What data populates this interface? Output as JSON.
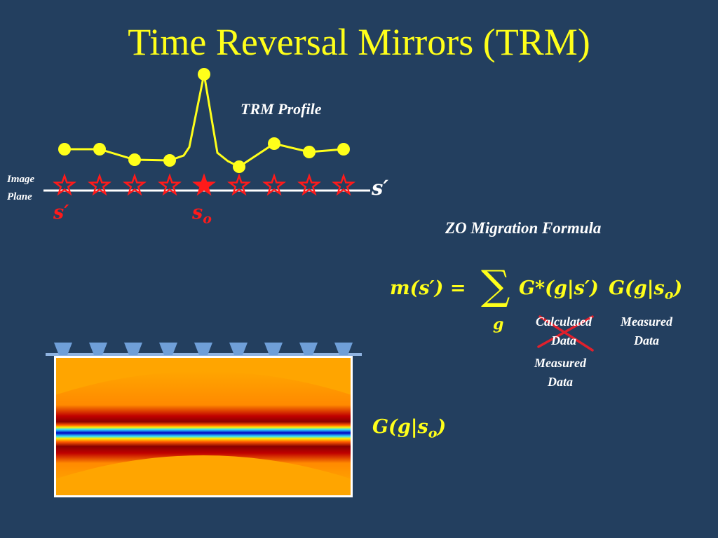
{
  "title": "Time Reversal Mirrors (TRM)",
  "trm_profile_label": "TRM Profile",
  "image_plane_label": [
    "Image",
    "Plane"
  ],
  "s_prime_label": "s′",
  "s_o_base": "s",
  "s_o_sub": "o",
  "formula_heading": "ZO Migration Formula",
  "formula": {
    "lhs": "m(s′) =",
    "sum_symbol": "∑",
    "sum_index": "g",
    "term1": "G*(g|s′)",
    "term2_prefix": "G(g|s",
    "term2_sub": "o",
    "term2_suffix": ")"
  },
  "calculated_data_label": [
    "Calculated",
    "Data"
  ],
  "measured_data_left_label": [
    "Measured",
    "Data"
  ],
  "measured_data_right_label": [
    "Measured",
    "Data"
  ],
  "green_label": {
    "prefix": "G(g|s",
    "sub": "o",
    "suffix": ")"
  },
  "colors": {
    "background": "#233f5f",
    "title": "#ffff1a",
    "profile": "#ffff1a",
    "stars": "#ff1a1a",
    "cross": "#e0202c",
    "receivers": "#6f9fd8"
  },
  "icons": [
    "star-outline-icon",
    "star-filled-icon",
    "receiver-icon"
  ]
}
